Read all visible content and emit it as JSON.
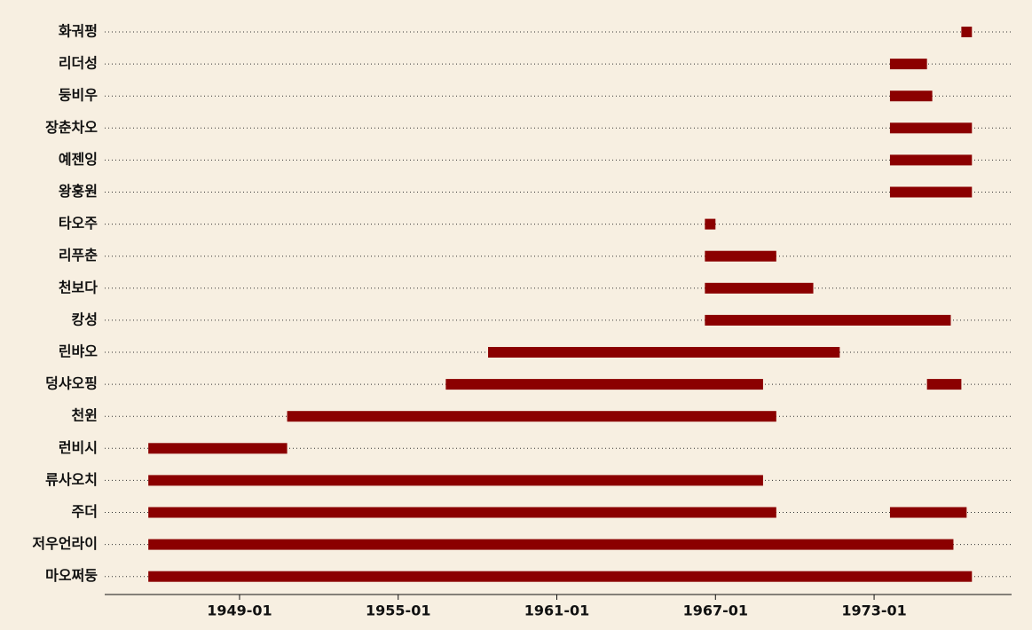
{
  "chart_data": {
    "type": "timeline",
    "color": "#8b0000",
    "xlim": [
      1943.9,
      1978.2
    ],
    "xticks": [
      {
        "value": 1949,
        "label": "1949-01"
      },
      {
        "value": 1955,
        "label": "1955-01"
      },
      {
        "value": 1961,
        "label": "1961-01"
      },
      {
        "value": 1967,
        "label": "1967-01"
      },
      {
        "value": 1973,
        "label": "1973-01"
      }
    ],
    "rows": [
      {
        "label": "화궈펑",
        "spans": [
          [
            1976.3,
            1976.7
          ]
        ]
      },
      {
        "label": "리더성",
        "spans": [
          [
            1973.6,
            1975.0
          ]
        ]
      },
      {
        "label": "둥비우",
        "spans": [
          [
            1973.6,
            1975.2
          ]
        ]
      },
      {
        "label": "장춘차오",
        "spans": [
          [
            1973.6,
            1976.7
          ]
        ]
      },
      {
        "label": "예젠잉",
        "spans": [
          [
            1973.6,
            1976.7
          ]
        ]
      },
      {
        "label": "왕훙원",
        "spans": [
          [
            1973.6,
            1976.7
          ]
        ]
      },
      {
        "label": "타오주",
        "spans": [
          [
            1966.6,
            1967.0
          ]
        ]
      },
      {
        "label": "리푸춘",
        "spans": [
          [
            1966.6,
            1969.3
          ]
        ]
      },
      {
        "label": "천보다",
        "spans": [
          [
            1966.6,
            1970.7
          ]
        ]
      },
      {
        "label": "캉성",
        "spans": [
          [
            1966.6,
            1975.9
          ]
        ]
      },
      {
        "label": "린뱌오",
        "spans": [
          [
            1958.4,
            1971.7
          ]
        ]
      },
      {
        "label": "덩샤오핑",
        "spans": [
          [
            1956.8,
            1968.8
          ],
          [
            1975.0,
            1976.3
          ]
        ]
      },
      {
        "label": "천윈",
        "spans": [
          [
            1950.8,
            1969.3
          ]
        ]
      },
      {
        "label": "런비시",
        "spans": [
          [
            1945.55,
            1950.8
          ]
        ]
      },
      {
        "label": "류사오치",
        "spans": [
          [
            1945.55,
            1968.8
          ]
        ]
      },
      {
        "label": "주더",
        "spans": [
          [
            1945.55,
            1969.3
          ],
          [
            1973.6,
            1976.5
          ]
        ]
      },
      {
        "label": "저우언라이",
        "spans": [
          [
            1945.55,
            1976.0
          ]
        ]
      },
      {
        "label": "마오쩌둥",
        "spans": [
          [
            1945.55,
            1976.7
          ]
        ]
      }
    ]
  }
}
